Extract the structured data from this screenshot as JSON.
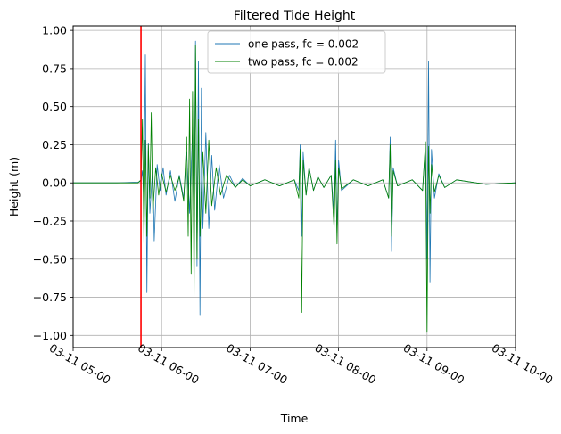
{
  "colors": {
    "series_one": "#1f77b4",
    "series_two": "#008000",
    "event_line": "#ff0000",
    "grid": "#b0b0b0",
    "axes": "#000000"
  },
  "chart_data": {
    "type": "line",
    "title": "Filtered Tide Height",
    "xlabel": "Time",
    "ylabel": "Height (m)",
    "xlim": [
      "03-11 05:00",
      "03-11 10:00"
    ],
    "ylim": [
      -1.08,
      1.03
    ],
    "x_ticks": [
      "03-11 05:00",
      "03-11 06:00",
      "03-11 07:00",
      "03-11 08:00",
      "03-11 09:00",
      "03-11 10:00"
    ],
    "y_ticks": [
      1.0,
      0.75,
      0.5,
      0.25,
      0.0,
      -0.25,
      -0.5,
      -0.75,
      -1.0
    ],
    "y_tick_labels": [
      "1.00",
      "0.75",
      "0.50",
      "0.25",
      "0.00",
      "−0.25",
      "−0.50",
      "−0.75",
      "−1.00"
    ],
    "grid": true,
    "legend": "upper center",
    "vertical_line": {
      "x": "03-11 05:46"
    },
    "series": [
      {
        "name": "one pass, fc = 0.002",
        "points": [
          [
            "03-11 05:00",
            0.0
          ],
          [
            "03-11 05:30",
            0.0
          ],
          [
            "03-11 05:44",
            0.005
          ],
          [
            "03-11 05:46",
            0.01
          ],
          [
            "03-11 05:47",
            0.08
          ],
          [
            "03-11 05:48",
            -0.12
          ],
          [
            "03-11 05:49",
            0.84
          ],
          [
            "03-11 05:50",
            -0.72
          ],
          [
            "03-11 05:51",
            0.26
          ],
          [
            "03-11 05:52",
            -0.2
          ],
          [
            "03-11 05:54",
            0.12
          ],
          [
            "03-11 05:55",
            -0.38
          ],
          [
            "03-11 05:57",
            0.12
          ],
          [
            "03-11 05:59",
            -0.05
          ],
          [
            "03-11 06:01",
            0.1
          ],
          [
            "03-11 06:03",
            -0.08
          ],
          [
            "03-11 06:06",
            0.08
          ],
          [
            "03-11 06:09",
            -0.12
          ],
          [
            "03-11 06:12",
            0.05
          ],
          [
            "03-11 06:15",
            -0.1
          ],
          [
            "03-11 06:17",
            0.2
          ],
          [
            "03-11 06:19",
            -0.2
          ],
          [
            "03-11 06:21",
            0.35
          ],
          [
            "03-11 06:22",
            -0.42
          ],
          [
            "03-11 06:23",
            0.93
          ],
          [
            "03-11 06:24",
            -0.55
          ],
          [
            "03-11 06:25",
            0.8
          ],
          [
            "03-11 06:26",
            -0.87
          ],
          [
            "03-11 06:27",
            0.62
          ],
          [
            "03-11 06:28",
            -0.3
          ],
          [
            "03-11 06:30",
            0.33
          ],
          [
            "03-11 06:32",
            -0.3
          ],
          [
            "03-11 06:34",
            0.18
          ],
          [
            "03-11 06:36",
            -0.18
          ],
          [
            "03-11 06:39",
            0.12
          ],
          [
            "03-11 06:42",
            -0.1
          ],
          [
            "03-11 06:46",
            0.05
          ],
          [
            "03-11 06:50",
            -0.03
          ],
          [
            "03-11 06:55",
            0.03
          ],
          [
            "03-11 07:00",
            -0.02
          ],
          [
            "03-11 07:10",
            0.02
          ],
          [
            "03-11 07:20",
            -0.02
          ],
          [
            "03-11 07:30",
            0.02
          ],
          [
            "03-11 07:33",
            -0.05
          ],
          [
            "03-11 07:34",
            0.25
          ],
          [
            "03-11 07:35",
            -0.35
          ],
          [
            "03-11 07:36",
            0.2
          ],
          [
            "03-11 07:38",
            -0.08
          ],
          [
            "03-11 07:40",
            0.1
          ],
          [
            "03-11 07:43",
            -0.05
          ],
          [
            "03-11 07:46",
            0.04
          ],
          [
            "03-11 07:50",
            -0.03
          ],
          [
            "03-11 07:55",
            0.05
          ],
          [
            "03-11 07:57",
            -0.2
          ],
          [
            "03-11 07:58",
            0.28
          ],
          [
            "03-11 07:59",
            -0.35
          ],
          [
            "03-11 08:00",
            0.15
          ],
          [
            "03-11 08:02",
            -0.05
          ],
          [
            "03-11 08:10",
            0.02
          ],
          [
            "03-11 08:20",
            -0.02
          ],
          [
            "03-11 08:30",
            0.02
          ],
          [
            "03-11 08:34",
            -0.1
          ],
          [
            "03-11 08:35",
            0.3
          ],
          [
            "03-11 08:36",
            -0.45
          ],
          [
            "03-11 08:37",
            0.1
          ],
          [
            "03-11 08:40",
            -0.02
          ],
          [
            "03-11 08:50",
            0.02
          ],
          [
            "03-11 08:57",
            -0.05
          ],
          [
            "03-11 08:59",
            0.25
          ],
          [
            "03-11 09:00",
            -0.5
          ],
          [
            "03-11 09:01",
            0.8
          ],
          [
            "03-11 09:02",
            -0.65
          ],
          [
            "03-11 09:03",
            0.22
          ],
          [
            "03-11 09:05",
            -0.1
          ],
          [
            "03-11 09:08",
            0.06
          ],
          [
            "03-11 09:12",
            -0.03
          ],
          [
            "03-11 09:20",
            0.02
          ],
          [
            "03-11 09:40",
            -0.01
          ],
          [
            "03-11 10:00",
            0.0
          ]
        ]
      },
      {
        "name": "two pass, fc = 0.002",
        "points": [
          [
            "03-11 05:00",
            0.0
          ],
          [
            "03-11 05:30",
            0.0
          ],
          [
            "03-11 05:44",
            0.0
          ],
          [
            "03-11 05:46",
            0.02
          ],
          [
            "03-11 05:47",
            0.42
          ],
          [
            "03-11 05:48",
            -0.4
          ],
          [
            "03-11 05:49",
            0.28
          ],
          [
            "03-11 05:50",
            -0.35
          ],
          [
            "03-11 05:51",
            0.25
          ],
          [
            "03-11 05:52",
            -0.1
          ],
          [
            "03-11 05:53",
            0.46
          ],
          [
            "03-11 05:54",
            -0.2
          ],
          [
            "03-11 05:56",
            0.1
          ],
          [
            "03-11 05:58",
            -0.08
          ],
          [
            "03-11 06:00",
            0.06
          ],
          [
            "03-11 06:03",
            -0.06
          ],
          [
            "03-11 06:06",
            0.05
          ],
          [
            "03-11 06:09",
            -0.05
          ],
          [
            "03-11 06:12",
            0.04
          ],
          [
            "03-11 06:15",
            -0.12
          ],
          [
            "03-11 06:17",
            0.3
          ],
          [
            "03-11 06:18",
            -0.35
          ],
          [
            "03-11 06:19",
            0.55
          ],
          [
            "03-11 06:20",
            -0.6
          ],
          [
            "03-11 06:21",
            0.6
          ],
          [
            "03-11 06:22",
            -0.75
          ],
          [
            "03-11 06:23",
            0.9
          ],
          [
            "03-11 06:24",
            -0.5
          ],
          [
            "03-11 06:25",
            0.42
          ],
          [
            "03-11 06:26",
            -0.35
          ],
          [
            "03-11 06:28",
            0.2
          ],
          [
            "03-11 06:30",
            -0.2
          ],
          [
            "03-11 06:32",
            0.28
          ],
          [
            "03-11 06:34",
            -0.15
          ],
          [
            "03-11 06:37",
            0.1
          ],
          [
            "03-11 06:40",
            -0.08
          ],
          [
            "03-11 06:44",
            0.05
          ],
          [
            "03-11 06:50",
            -0.03
          ],
          [
            "03-11 06:55",
            0.02
          ],
          [
            "03-11 07:00",
            -0.02
          ],
          [
            "03-11 07:10",
            0.02
          ],
          [
            "03-11 07:20",
            -0.02
          ],
          [
            "03-11 07:30",
            0.02
          ],
          [
            "03-11 07:33",
            -0.1
          ],
          [
            "03-11 07:34",
            0.22
          ],
          [
            "03-11 07:35",
            -0.85
          ],
          [
            "03-11 07:36",
            0.15
          ],
          [
            "03-11 07:38",
            -0.08
          ],
          [
            "03-11 07:40",
            0.1
          ],
          [
            "03-11 07:43",
            -0.05
          ],
          [
            "03-11 07:46",
            0.04
          ],
          [
            "03-11 07:50",
            -0.03
          ],
          [
            "03-11 07:55",
            0.05
          ],
          [
            "03-11 07:57",
            -0.3
          ],
          [
            "03-11 07:58",
            0.15
          ],
          [
            "03-11 07:59",
            -0.4
          ],
          [
            "03-11 08:00",
            0.1
          ],
          [
            "03-11 08:02",
            -0.04
          ],
          [
            "03-11 08:10",
            0.02
          ],
          [
            "03-11 08:20",
            -0.02
          ],
          [
            "03-11 08:30",
            0.02
          ],
          [
            "03-11 08:34",
            -0.1
          ],
          [
            "03-11 08:35",
            0.25
          ],
          [
            "03-11 08:36",
            -0.35
          ],
          [
            "03-11 08:37",
            0.08
          ],
          [
            "03-11 08:40",
            -0.02
          ],
          [
            "03-11 08:50",
            0.02
          ],
          [
            "03-11 08:57",
            -0.05
          ],
          [
            "03-11 08:59",
            0.27
          ],
          [
            "03-11 09:00",
            -0.98
          ],
          [
            "03-11 09:01",
            0.24
          ],
          [
            "03-11 09:02",
            -0.2
          ],
          [
            "03-11 09:03",
            0.12
          ],
          [
            "03-11 09:05",
            -0.06
          ],
          [
            "03-11 09:08",
            0.05
          ],
          [
            "03-11 09:12",
            -0.03
          ],
          [
            "03-11 09:20",
            0.02
          ],
          [
            "03-11 09:40",
            -0.01
          ],
          [
            "03-11 10:00",
            0.0
          ]
        ]
      }
    ]
  }
}
